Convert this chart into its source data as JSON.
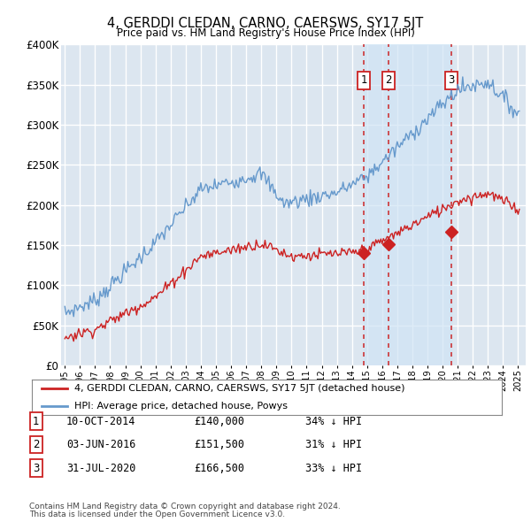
{
  "title": "4, GERDDI CLEDAN, CARNO, CAERSWS, SY17 5JT",
  "subtitle": "Price paid vs. HM Land Registry's House Price Index (HPI)",
  "ylim": [
    0,
    400000
  ],
  "xlim_start": 1994.75,
  "xlim_end": 2025.5,
  "plot_bg_color": "#dce6f0",
  "grid_color": "#ffffff",
  "hpi_color": "#6699cc",
  "price_color": "#cc2222",
  "vline_color": "#cc2222",
  "shade_color": "#d0e4f5",
  "legend_label_red": "4, GERDDI CLEDAN, CARNO, CAERSWS, SY17 5JT (detached house)",
  "legend_label_blue": "HPI: Average price, detached house, Powys",
  "sales": [
    {
      "num": 1,
      "date": "10-OCT-2014",
      "price": 140000,
      "year": 2014.78
    },
    {
      "num": 2,
      "date": "03-JUN-2016",
      "price": 151500,
      "year": 2016.42
    },
    {
      "num": 3,
      "date": "31-JUL-2020",
      "price": 166500,
      "year": 2020.58
    }
  ],
  "sale_pct": [
    "34%",
    "31%",
    "33%"
  ],
  "footer1": "Contains HM Land Registry data © Crown copyright and database right 2024.",
  "footer2": "This data is licensed under the Open Government Licence v3.0."
}
